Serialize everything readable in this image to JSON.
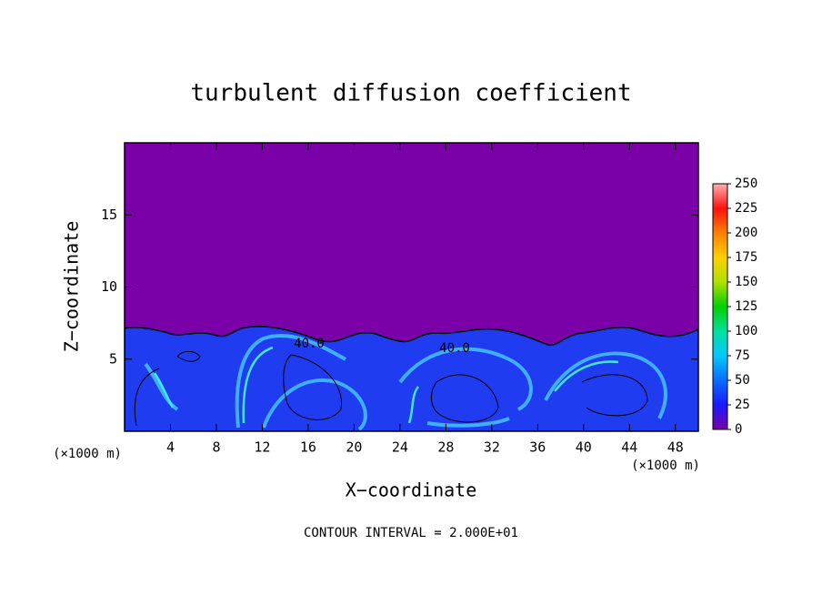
{
  "chart_data": {
    "type": "contour",
    "title": "turbulent diffusion coefficient",
    "x_label": "X−coordinate",
    "y_label": "Z−coordinate",
    "x_unit_left": "(×1000 m)",
    "x_unit_right": "(×1000 m)",
    "footnote": "CONTOUR INTERVAL = 2.000E+01",
    "contour_labels": [
      "40.0",
      "40.0"
    ],
    "xlim": [
      0,
      50
    ],
    "xticks": [
      4,
      8,
      12,
      16,
      20,
      24,
      28,
      32,
      36,
      40,
      44,
      48
    ],
    "ylim": [
      0,
      20
    ],
    "yticks": [
      5,
      10,
      15
    ],
    "colorbar": {
      "lim": [
        0,
        250
      ],
      "ticks": [
        0,
        25,
        50,
        75,
        100,
        125,
        150,
        175,
        200,
        225,
        250
      ],
      "colors": [
        "#7a00a8",
        "#1a1aff",
        "#0a6cff",
        "#00c8ff",
        "#00e0a0",
        "#00d000",
        "#b0e000",
        "#ffd000",
        "#ff8000",
        "#ff1010",
        "#ffb0b0"
      ]
    }
  }
}
